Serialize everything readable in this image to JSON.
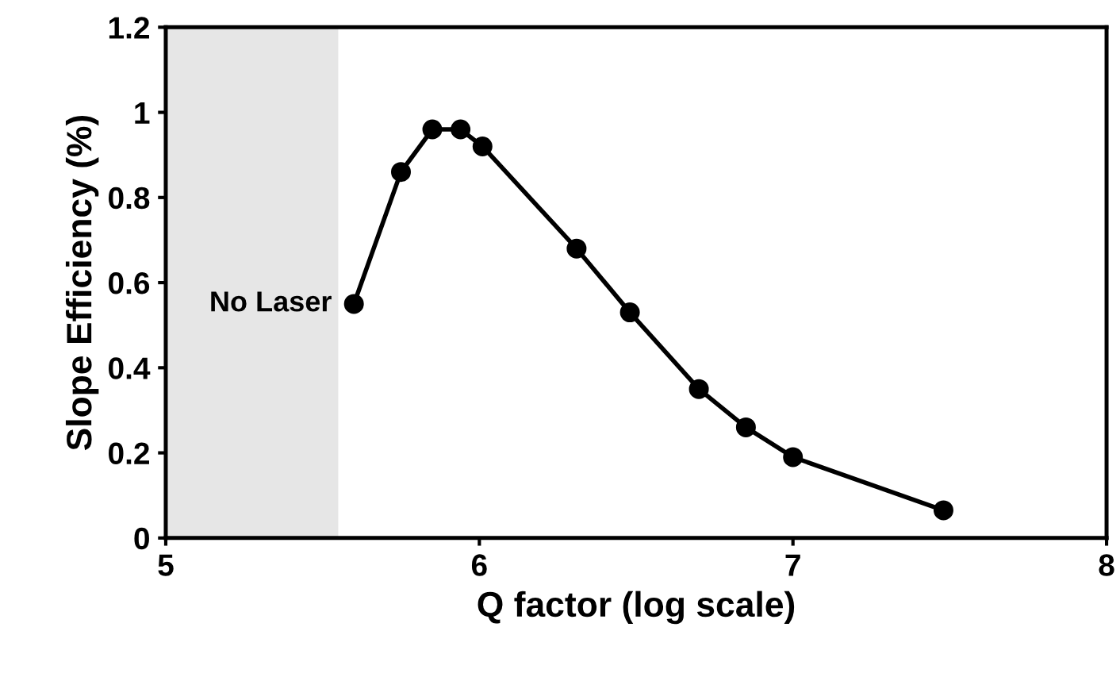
{
  "chart_data": {
    "type": "line",
    "xlabel": "Q factor (log scale)",
    "ylabel": "Slope Efficiency (%)",
    "x": [
      5.6,
      5.75,
      5.85,
      5.94,
      6.01,
      6.31,
      6.48,
      6.7,
      6.85,
      7.0,
      7.48
    ],
    "series": [
      {
        "color": "#000000",
        "values": [
          0.55,
          0.86,
          0.96,
          0.96,
          0.92,
          0.68,
          0.53,
          0.35,
          0.26,
          0.19,
          0.065
        ]
      }
    ],
    "xlim": [
      5,
      8
    ],
    "xticks": [
      5,
      6,
      7,
      8
    ],
    "ylim": [
      0,
      1.2
    ],
    "yticks": [
      0,
      0.2,
      0.4,
      0.6,
      0.8,
      1,
      1.2
    ],
    "marker": "circle",
    "line_style": "solid",
    "grid": false,
    "bands": [
      {
        "axis": "x",
        "from": 5,
        "to": 5.55,
        "color": "#e6e6e6"
      }
    ],
    "annotations": [
      {
        "text": "No Laser",
        "x": 5.6,
        "y": 0.55
      }
    ]
  }
}
